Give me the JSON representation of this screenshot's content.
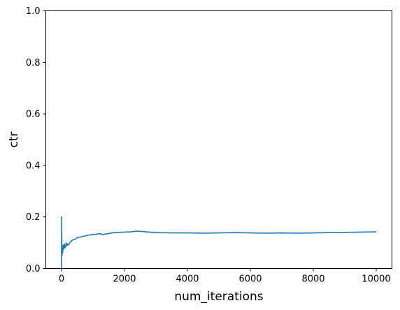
{
  "chart_data": {
    "type": "line",
    "title": "",
    "xlabel": "num_iterations",
    "ylabel": "ctr",
    "xlim": [
      -500,
      10500
    ],
    "ylim": [
      0,
      1.0
    ],
    "xticks": [
      0,
      2000,
      4000,
      6000,
      8000,
      10000
    ],
    "xtick_labels": [
      "0",
      "2000",
      "4000",
      "6000",
      "8000",
      "10000"
    ],
    "yticks": [
      0.0,
      0.2,
      0.4,
      0.6,
      0.8,
      1.0
    ],
    "ytick_labels": [
      "0.0",
      "0.2",
      "0.4",
      "0.6",
      "0.8",
      "1.0"
    ],
    "grid": false,
    "legend": "none",
    "series": [
      {
        "color": "#1f77b4",
        "x": [
          0,
          3,
          8,
          15,
          25,
          35,
          50,
          70,
          90,
          110,
          130,
          150,
          175,
          200,
          230,
          260,
          300,
          350,
          400,
          450,
          500,
          600,
          700,
          800,
          900,
          1000,
          1100,
          1200,
          1300,
          1400,
          1500,
          1600,
          1800,
          2000,
          2200,
          2400,
          2500,
          2700,
          3000,
          3500,
          4000,
          4500,
          5000,
          5500,
          6000,
          6500,
          7000,
          7500,
          8000,
          8500,
          9000,
          9500,
          10000
        ],
        "y": [
          0.0,
          0.2,
          0.12,
          0.05,
          0.08,
          0.06,
          0.09,
          0.075,
          0.095,
          0.08,
          0.085,
          0.1,
          0.088,
          0.095,
          0.092,
          0.1,
          0.105,
          0.11,
          0.112,
          0.115,
          0.12,
          0.122,
          0.125,
          0.128,
          0.13,
          0.132,
          0.133,
          0.135,
          0.132,
          0.134,
          0.135,
          0.138,
          0.14,
          0.141,
          0.142,
          0.145,
          0.144,
          0.142,
          0.139,
          0.138,
          0.138,
          0.137,
          0.138,
          0.139,
          0.138,
          0.137,
          0.138,
          0.137,
          0.138,
          0.139,
          0.14,
          0.141,
          0.142
        ]
      }
    ]
  }
}
